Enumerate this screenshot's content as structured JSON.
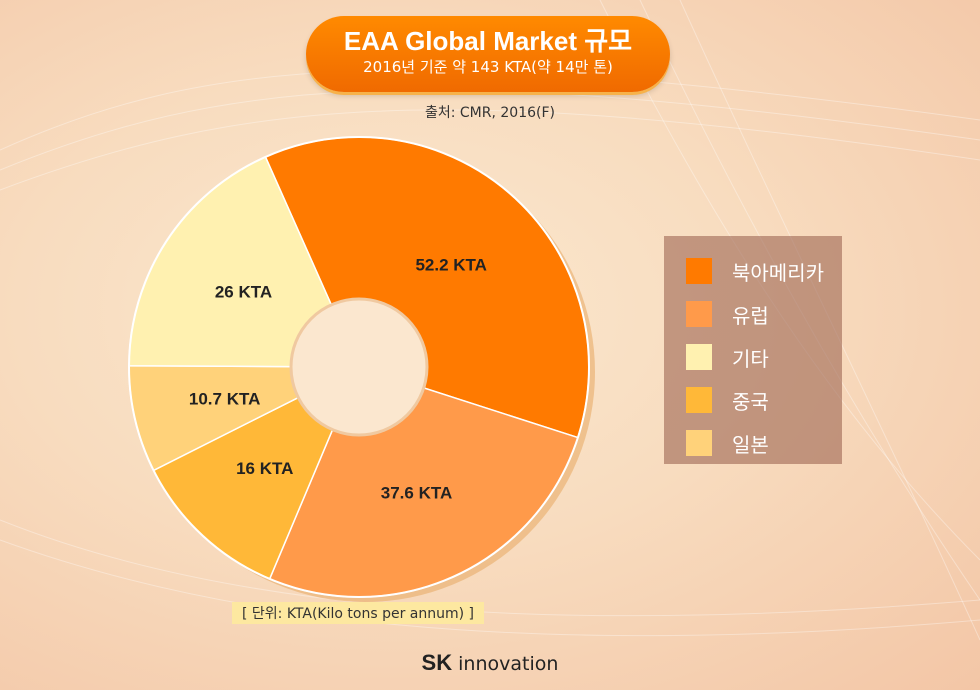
{
  "header": {
    "title": "EAA Global Market 규모",
    "subtitle": "2016년 기준 약 143 KTA(약 14만 톤)",
    "source": "출처: CMR, 2016(F)"
  },
  "footer": {
    "unit_note": "[ 단위: KTA(Kilo tons per annum) ]",
    "logo_sk": "SK",
    "logo_rest": "innovation"
  },
  "chart_data": {
    "type": "pie",
    "title": "EAA Global Market 규모",
    "subtitle": "2016년 기준 약 143 KTA(약 14만 톤)",
    "unit": "KTA",
    "donut": true,
    "legend_placement": "right",
    "slices": [
      {
        "name": "북아메리카",
        "value": 52.2,
        "label": "52.2 KTA",
        "color": "#ff7a00"
      },
      {
        "name": "유럽",
        "value": 37.6,
        "label": "37.6 KTA",
        "color": "#ff9a4a"
      },
      {
        "name": "중국",
        "value": 16,
        "label": "16 KTA",
        "color": "#ffb838"
      },
      {
        "name": "일본",
        "value": 10.7,
        "label": "10.7 KTA",
        "color": "#ffd27a"
      },
      {
        "name": "기타",
        "value": 26,
        "label": "26 KTA",
        "color": "#fff1b0"
      }
    ],
    "legend": [
      {
        "name": "북아메리카",
        "color": "#ff7a00"
      },
      {
        "name": "유럽",
        "color": "#ff9a4a"
      },
      {
        "name": "기타",
        "color": "#fff1b0"
      },
      {
        "name": "중국",
        "color": "#ffb838"
      },
      {
        "name": "일본",
        "color": "#ffd27a"
      }
    ]
  }
}
